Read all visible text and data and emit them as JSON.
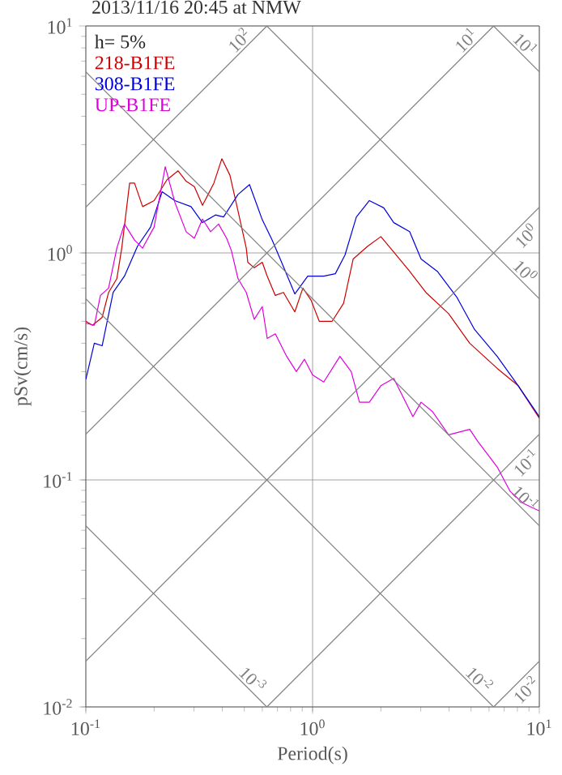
{
  "chart_data": {
    "type": "line",
    "title": "2013/11/16 20:45 at NMW",
    "xlabel": "Period(s)",
    "ylabel": "pSv(cm/s)",
    "log": "xy",
    "grid": true,
    "legend": "top left",
    "xlim": [
      0.1,
      10
    ],
    "ylim": [
      0.01,
      10
    ],
    "xticks": [
      {
        "value": 0.1,
        "label": "10$^{-1}$"
      },
      {
        "value": 1,
        "label": "10$^{0}$"
      },
      {
        "value": 10,
        "label": "10$^{1}$"
      }
    ],
    "yticks": [
      {
        "value": 0.01,
        "label": "10$^{-2}$"
      },
      {
        "value": 0.1,
        "label": "10$^{-1}$"
      },
      {
        "value": 1,
        "label": "10$^{0}$"
      },
      {
        "value": 10,
        "label": "10$^{1}$"
      }
    ],
    "series": [
      {
        "name": "218-B1FE",
        "color": "#cc0000",
        "x": [
          0.1,
          0.107,
          0.118,
          0.126,
          0.137,
          0.144,
          0.156,
          0.164,
          0.178,
          0.2,
          0.228,
          0.255,
          0.277,
          0.301,
          0.327,
          0.367,
          0.398,
          0.432,
          0.469,
          0.51,
          0.518,
          0.553,
          0.6,
          0.631,
          0.685,
          0.744,
          0.835,
          0.906,
          0.984,
          1.07,
          1.22,
          1.37,
          1.51,
          1.75,
          2.0,
          2.28,
          2.68,
          3.16,
          3.98,
          4.93,
          6.52,
          8.07,
          10
        ],
        "values": [
          0.5,
          0.48,
          0.52,
          0.67,
          0.77,
          1.05,
          2.03,
          2.03,
          1.6,
          1.7,
          2.1,
          2.3,
          2.07,
          1.96,
          1.62,
          2.03,
          2.6,
          2.2,
          1.53,
          1.05,
          0.91,
          0.86,
          0.91,
          0.79,
          0.65,
          0.67,
          0.55,
          0.7,
          0.62,
          0.5,
          0.5,
          0.6,
          0.94,
          1.07,
          1.18,
          1.01,
          0.83,
          0.67,
          0.54,
          0.4,
          0.31,
          0.26,
          0.187
        ]
      },
      {
        "name": "308-B1FE",
        "color": "#0000dd",
        "x": [
          0.1,
          0.109,
          0.118,
          0.132,
          0.148,
          0.169,
          0.193,
          0.217,
          0.247,
          0.291,
          0.327,
          0.373,
          0.405,
          0.469,
          0.527,
          0.6,
          0.663,
          0.72,
          0.835,
          0.952,
          1.12,
          1.26,
          1.39,
          1.56,
          1.78,
          2.06,
          2.28,
          2.68,
          3.01,
          3.55,
          4.32,
          5.18,
          6.52,
          8.07,
          10
        ],
        "values": [
          0.277,
          0.4,
          0.39,
          0.67,
          0.79,
          1.07,
          1.3,
          1.86,
          1.7,
          1.6,
          1.36,
          1.47,
          1.44,
          1.81,
          2.0,
          1.4,
          1.14,
          0.94,
          0.66,
          0.79,
          0.79,
          0.81,
          0.98,
          1.44,
          1.7,
          1.58,
          1.36,
          1.24,
          0.94,
          0.83,
          0.64,
          0.46,
          0.35,
          0.26,
          0.19
        ]
      },
      {
        "name": "UP-B1FE",
        "color": "#dd00dd",
        "x": [
          0.1,
          0.109,
          0.116,
          0.126,
          0.137,
          0.148,
          0.164,
          0.178,
          0.2,
          0.224,
          0.247,
          0.277,
          0.301,
          0.327,
          0.355,
          0.385,
          0.418,
          0.439,
          0.469,
          0.51,
          0.553,
          0.6,
          0.631,
          0.685,
          0.769,
          0.848,
          0.921,
          1.0,
          1.12,
          1.32,
          1.48,
          1.61,
          1.78,
          2.0,
          2.28,
          2.77,
          3.01,
          3.38,
          3.98,
          4.93,
          5.35,
          6.52,
          7.44,
          8.48,
          10
        ],
        "values": [
          0.49,
          0.48,
          0.65,
          0.7,
          1.05,
          1.34,
          1.14,
          1.05,
          1.3,
          2.4,
          1.67,
          1.24,
          1.16,
          1.41,
          1.24,
          1.34,
          1.16,
          1.02,
          0.77,
          0.67,
          0.51,
          0.58,
          0.42,
          0.44,
          0.35,
          0.3,
          0.34,
          0.29,
          0.27,
          0.35,
          0.3,
          0.22,
          0.22,
          0.26,
          0.28,
          0.19,
          0.22,
          0.2,
          0.158,
          0.167,
          0.148,
          0.114,
          0.089,
          0.079,
          0.073
        ]
      },
      {
        "name": "10$^{2}$",
        "color": "#808080",
        "x": [
          0.1,
          0.629
        ],
        "values": [
          1.59,
          10
        ]
      },
      {
        "name": "10$^{1}$",
        "color": "#808080",
        "x": [
          0.1,
          6.29
        ],
        "values": [
          0.159,
          10
        ]
      },
      {
        "name": "10$^{0}$",
        "color": "#808080",
        "x": [
          0.1,
          10
        ],
        "values": [
          0.0159,
          1.59
        ]
      },
      {
        "name": "10$^{-1}$",
        "color": "#808080",
        "x": [
          0.629,
          10
        ],
        "values": [
          0.01,
          0.159
        ]
      },
      {
        "name": "10$^{-2}$",
        "color": "#808080",
        "x": [
          6.29,
          10
        ],
        "values": [
          0.01,
          0.0159
        ]
      },
      {
        "name": "10$^{1}$",
        "color": "#808080",
        "x": [
          6.28,
          10
        ],
        "values": [
          10,
          6.28
        ]
      },
      {
        "name": "10$^{0}$",
        "color": "#808080",
        "x": [
          0.628,
          10
        ],
        "values": [
          10,
          0.628
        ]
      },
      {
        "name": "10$^{-1}$",
        "color": "#808080",
        "x": [
          0.1,
          10
        ],
        "values": [
          6.28,
          0.0628
        ]
      },
      {
        "name": "10$^{-2}$",
        "color": "#808080",
        "x": [
          0.1,
          6.28
        ],
        "values": [
          0.628,
          0.01
        ]
      },
      {
        "name": "10$^{-3}$",
        "color": "#808080",
        "x": [
          0.1,
          0.628
        ],
        "values": [
          0.0628,
          0.01
        ]
      }
    ],
    "annotations": [
      "h= 5%"
    ]
  }
}
